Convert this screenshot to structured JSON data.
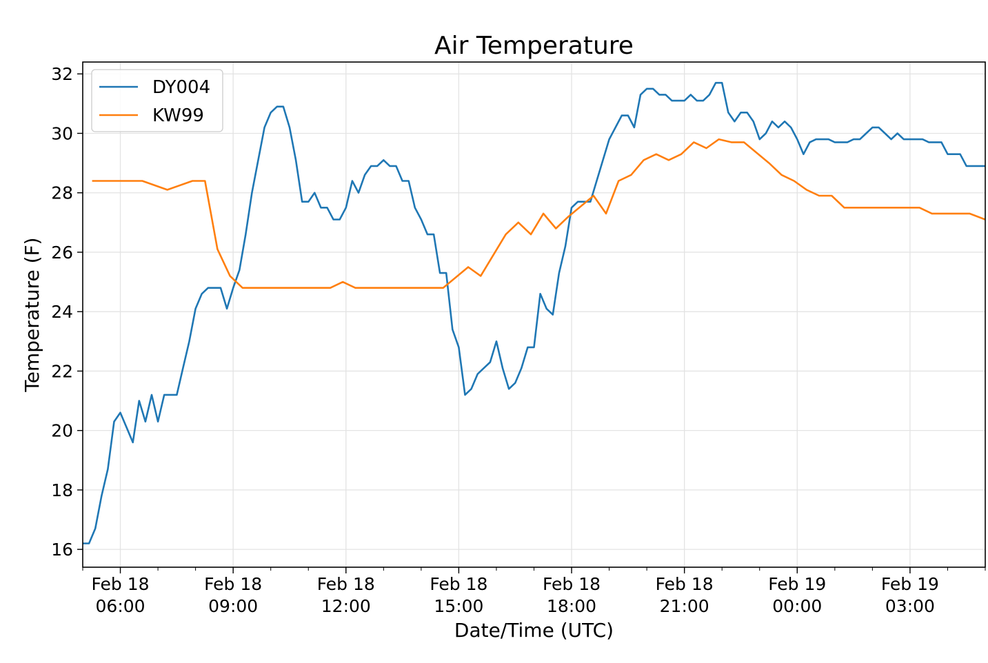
{
  "chart_data": {
    "type": "line",
    "title": "Air Temperature",
    "xlabel": "Date/Time (UTC)",
    "ylabel": "Temperature (F)",
    "ylim": [
      15.4,
      32.4
    ],
    "yticks": [
      16,
      18,
      20,
      22,
      24,
      26,
      28,
      30,
      32
    ],
    "xlim": [
      "2019-02-18 05:00",
      "2019-02-19 05:00"
    ],
    "xticks": [
      {
        "x": "2019-02-18 06:00",
        "date": "Feb 18",
        "time": "06:00"
      },
      {
        "x": "2019-02-18 09:00",
        "date": "Feb 18",
        "time": "09:00"
      },
      {
        "x": "2019-02-18 12:00",
        "date": "Feb 18",
        "time": "12:00"
      },
      {
        "x": "2019-02-18 15:00",
        "date": "Feb 18",
        "time": "15:00"
      },
      {
        "x": "2019-02-18 18:00",
        "date": "Feb 18",
        "time": "18:00"
      },
      {
        "x": "2019-02-18 21:00",
        "date": "Feb 18",
        "time": "21:00"
      },
      {
        "x": "2019-02-19 00:00",
        "date": "Feb 19",
        "time": "00:00"
      },
      {
        "x": "2019-02-19 03:00",
        "date": "Feb 19",
        "time": "03:00"
      }
    ],
    "grid": true,
    "legend_position": "top-left",
    "series": [
      {
        "name": "DY004",
        "color": "#1f77b4",
        "points": [
          [
            "2019-02-18 05:00",
            16.2
          ],
          [
            "2019-02-18 05:10",
            16.2
          ],
          [
            "2019-02-18 05:20",
            16.7
          ],
          [
            "2019-02-18 05:30",
            17.8
          ],
          [
            "2019-02-18 05:40",
            18.7
          ],
          [
            "2019-02-18 05:50",
            20.3
          ],
          [
            "2019-02-18 06:00",
            20.6
          ],
          [
            "2019-02-18 06:10",
            20.1
          ],
          [
            "2019-02-18 06:20",
            19.6
          ],
          [
            "2019-02-18 06:30",
            21.0
          ],
          [
            "2019-02-18 06:40",
            20.3
          ],
          [
            "2019-02-18 06:50",
            21.2
          ],
          [
            "2019-02-18 07:00",
            20.3
          ],
          [
            "2019-02-18 07:10",
            21.2
          ],
          [
            "2019-02-18 07:20",
            21.2
          ],
          [
            "2019-02-18 07:30",
            21.2
          ],
          [
            "2019-02-18 07:40",
            22.1
          ],
          [
            "2019-02-18 07:50",
            23.0
          ],
          [
            "2019-02-18 08:00",
            24.1
          ],
          [
            "2019-02-18 08:10",
            24.6
          ],
          [
            "2019-02-18 08:20",
            24.8
          ],
          [
            "2019-02-18 08:30",
            24.8
          ],
          [
            "2019-02-18 08:40",
            24.8
          ],
          [
            "2019-02-18 08:50",
            24.1
          ],
          [
            "2019-02-18 09:00",
            24.8
          ],
          [
            "2019-02-18 09:10",
            25.4
          ],
          [
            "2019-02-18 09:20",
            26.6
          ],
          [
            "2019-02-18 09:30",
            28.0
          ],
          [
            "2019-02-18 09:40",
            29.1
          ],
          [
            "2019-02-18 09:50",
            30.2
          ],
          [
            "2019-02-18 10:00",
            30.7
          ],
          [
            "2019-02-18 10:10",
            30.9
          ],
          [
            "2019-02-18 10:20",
            30.9
          ],
          [
            "2019-02-18 10:30",
            30.2
          ],
          [
            "2019-02-18 10:40",
            29.1
          ],
          [
            "2019-02-18 10:50",
            27.7
          ],
          [
            "2019-02-18 11:00",
            27.7
          ],
          [
            "2019-02-18 11:10",
            28.0
          ],
          [
            "2019-02-18 11:20",
            27.5
          ],
          [
            "2019-02-18 11:30",
            27.5
          ],
          [
            "2019-02-18 11:40",
            27.1
          ],
          [
            "2019-02-18 11:50",
            27.1
          ],
          [
            "2019-02-18 12:00",
            27.5
          ],
          [
            "2019-02-18 12:10",
            28.4
          ],
          [
            "2019-02-18 12:20",
            28.0
          ],
          [
            "2019-02-18 12:30",
            28.6
          ],
          [
            "2019-02-18 12:40",
            28.9
          ],
          [
            "2019-02-18 12:50",
            28.9
          ],
          [
            "2019-02-18 13:00",
            29.1
          ],
          [
            "2019-02-18 13:10",
            28.9
          ],
          [
            "2019-02-18 13:20",
            28.9
          ],
          [
            "2019-02-18 13:30",
            28.4
          ],
          [
            "2019-02-18 13:40",
            28.4
          ],
          [
            "2019-02-18 13:50",
            27.5
          ],
          [
            "2019-02-18 14:00",
            27.1
          ],
          [
            "2019-02-18 14:10",
            26.6
          ],
          [
            "2019-02-18 14:20",
            26.6
          ],
          [
            "2019-02-18 14:30",
            25.3
          ],
          [
            "2019-02-18 14:40",
            25.3
          ],
          [
            "2019-02-18 14:50",
            23.4
          ],
          [
            "2019-02-18 15:00",
            22.8
          ],
          [
            "2019-02-18 15:10",
            21.2
          ],
          [
            "2019-02-18 15:20",
            21.4
          ],
          [
            "2019-02-18 15:30",
            21.9
          ],
          [
            "2019-02-18 15:40",
            22.1
          ],
          [
            "2019-02-18 15:50",
            22.3
          ],
          [
            "2019-02-18 16:00",
            23.0
          ],
          [
            "2019-02-18 16:10",
            22.1
          ],
          [
            "2019-02-18 16:20",
            21.4
          ],
          [
            "2019-02-18 16:30",
            21.6
          ],
          [
            "2019-02-18 16:40",
            22.1
          ],
          [
            "2019-02-18 16:50",
            22.8
          ],
          [
            "2019-02-18 17:00",
            22.8
          ],
          [
            "2019-02-18 17:10",
            24.6
          ],
          [
            "2019-02-18 17:20",
            24.1
          ],
          [
            "2019-02-18 17:30",
            23.9
          ],
          [
            "2019-02-18 17:40",
            25.3
          ],
          [
            "2019-02-18 17:50",
            26.2
          ],
          [
            "2019-02-18 18:00",
            27.5
          ],
          [
            "2019-02-18 18:10",
            27.7
          ],
          [
            "2019-02-18 18:20",
            27.7
          ],
          [
            "2019-02-18 18:30",
            27.7
          ],
          [
            "2019-02-18 18:40",
            28.4
          ],
          [
            "2019-02-18 18:50",
            29.1
          ],
          [
            "2019-02-18 19:00",
            29.8
          ],
          [
            "2019-02-18 19:10",
            30.2
          ],
          [
            "2019-02-18 19:20",
            30.6
          ],
          [
            "2019-02-18 19:30",
            30.6
          ],
          [
            "2019-02-18 19:40",
            30.2
          ],
          [
            "2019-02-18 19:50",
            31.3
          ],
          [
            "2019-02-18 20:00",
            31.5
          ],
          [
            "2019-02-18 20:10",
            31.5
          ],
          [
            "2019-02-18 20:20",
            31.3
          ],
          [
            "2019-02-18 20:30",
            31.3
          ],
          [
            "2019-02-18 20:40",
            31.1
          ],
          [
            "2019-02-18 20:50",
            31.1
          ],
          [
            "2019-02-18 21:00",
            31.1
          ],
          [
            "2019-02-18 21:10",
            31.3
          ],
          [
            "2019-02-18 21:20",
            31.1
          ],
          [
            "2019-02-18 21:30",
            31.1
          ],
          [
            "2019-02-18 21:40",
            31.3
          ],
          [
            "2019-02-18 21:50",
            31.7
          ],
          [
            "2019-02-18 22:00",
            31.7
          ],
          [
            "2019-02-18 22:10",
            30.7
          ],
          [
            "2019-02-18 22:20",
            30.4
          ],
          [
            "2019-02-18 22:30",
            30.7
          ],
          [
            "2019-02-18 22:40",
            30.7
          ],
          [
            "2019-02-18 22:50",
            30.4
          ],
          [
            "2019-02-18 23:00",
            29.8
          ],
          [
            "2019-02-18 23:10",
            30.0
          ],
          [
            "2019-02-18 23:20",
            30.4
          ],
          [
            "2019-02-18 23:30",
            30.2
          ],
          [
            "2019-02-18 23:40",
            30.4
          ],
          [
            "2019-02-18 23:50",
            30.2
          ],
          [
            "2019-02-19 00:00",
            29.8
          ],
          [
            "2019-02-19 00:10",
            29.3
          ],
          [
            "2019-02-19 00:20",
            29.7
          ],
          [
            "2019-02-19 00:30",
            29.8
          ],
          [
            "2019-02-19 00:40",
            29.8
          ],
          [
            "2019-02-19 00:50",
            29.8
          ],
          [
            "2019-02-19 01:00",
            29.7
          ],
          [
            "2019-02-19 01:10",
            29.7
          ],
          [
            "2019-02-19 01:20",
            29.7
          ],
          [
            "2019-02-19 01:30",
            29.8
          ],
          [
            "2019-02-19 01:40",
            29.8
          ],
          [
            "2019-02-19 01:50",
            30.0
          ],
          [
            "2019-02-19 02:00",
            30.2
          ],
          [
            "2019-02-19 02:10",
            30.2
          ],
          [
            "2019-02-19 02:20",
            30.0
          ],
          [
            "2019-02-19 02:30",
            29.8
          ],
          [
            "2019-02-19 02:40",
            30.0
          ],
          [
            "2019-02-19 02:50",
            29.8
          ],
          [
            "2019-02-19 03:00",
            29.8
          ],
          [
            "2019-02-19 03:10",
            29.8
          ],
          [
            "2019-02-19 03:20",
            29.8
          ],
          [
            "2019-02-19 03:30",
            29.7
          ],
          [
            "2019-02-19 03:40",
            29.7
          ],
          [
            "2019-02-19 03:50",
            29.7
          ],
          [
            "2019-02-19 04:00",
            29.3
          ],
          [
            "2019-02-19 04:10",
            29.3
          ],
          [
            "2019-02-19 04:20",
            29.3
          ],
          [
            "2019-02-19 04:30",
            28.9
          ],
          [
            "2019-02-19 04:40",
            28.9
          ],
          [
            "2019-02-19 04:50",
            28.9
          ],
          [
            "2019-02-19 05:00",
            28.9
          ]
        ]
      },
      {
        "name": "KW99",
        "color": "#ff7f0e",
        "points": [
          [
            "2019-02-18 05:15",
            28.4
          ],
          [
            "2019-02-18 06:00",
            28.4
          ],
          [
            "2019-02-18 06:35",
            28.4
          ],
          [
            "2019-02-18 07:15",
            28.1
          ],
          [
            "2019-02-18 07:55",
            28.4
          ],
          [
            "2019-02-18 08:15",
            28.4
          ],
          [
            "2019-02-18 08:35",
            26.1
          ],
          [
            "2019-02-18 08:55",
            25.2
          ],
          [
            "2019-02-18 09:15",
            24.8
          ],
          [
            "2019-02-18 10:00",
            24.8
          ],
          [
            "2019-02-18 11:00",
            24.8
          ],
          [
            "2019-02-18 11:35",
            24.8
          ],
          [
            "2019-02-18 11:55",
            25.0
          ],
          [
            "2019-02-18 12:15",
            24.8
          ],
          [
            "2019-02-18 13:00",
            24.8
          ],
          [
            "2019-02-18 14:00",
            24.8
          ],
          [
            "2019-02-18 14:35",
            24.8
          ],
          [
            "2019-02-18 15:15",
            25.5
          ],
          [
            "2019-02-18 15:35",
            25.2
          ],
          [
            "2019-02-18 16:15",
            26.6
          ],
          [
            "2019-02-18 16:35",
            27.0
          ],
          [
            "2019-02-18 16:55",
            26.6
          ],
          [
            "2019-02-18 17:15",
            27.3
          ],
          [
            "2019-02-18 17:35",
            26.8
          ],
          [
            "2019-02-18 17:55",
            27.2
          ],
          [
            "2019-02-18 18:35",
            27.9
          ],
          [
            "2019-02-18 18:55",
            27.3
          ],
          [
            "2019-02-18 19:15",
            28.4
          ],
          [
            "2019-02-18 19:35",
            28.6
          ],
          [
            "2019-02-18 19:55",
            29.1
          ],
          [
            "2019-02-18 20:15",
            29.3
          ],
          [
            "2019-02-18 20:35",
            29.1
          ],
          [
            "2019-02-18 20:55",
            29.3
          ],
          [
            "2019-02-18 21:15",
            29.7
          ],
          [
            "2019-02-18 21:35",
            29.5
          ],
          [
            "2019-02-18 21:55",
            29.8
          ],
          [
            "2019-02-18 22:15",
            29.7
          ],
          [
            "2019-02-18 22:35",
            29.7
          ],
          [
            "2019-02-18 23:15",
            29.0
          ],
          [
            "2019-02-18 23:35",
            28.6
          ],
          [
            "2019-02-18 23:55",
            28.4
          ],
          [
            "2019-02-19 00:15",
            28.1
          ],
          [
            "2019-02-19 00:35",
            27.9
          ],
          [
            "2019-02-19 00:55",
            27.9
          ],
          [
            "2019-02-19 01:15",
            27.5
          ],
          [
            "2019-02-19 02:00",
            27.5
          ],
          [
            "2019-02-19 02:35",
            27.5
          ],
          [
            "2019-02-19 03:15",
            27.5
          ],
          [
            "2019-02-19 03:35",
            27.3
          ],
          [
            "2019-02-19 04:00",
            27.3
          ],
          [
            "2019-02-19 04:35",
            27.3
          ],
          [
            "2019-02-19 05:00",
            27.1
          ]
        ]
      }
    ]
  }
}
